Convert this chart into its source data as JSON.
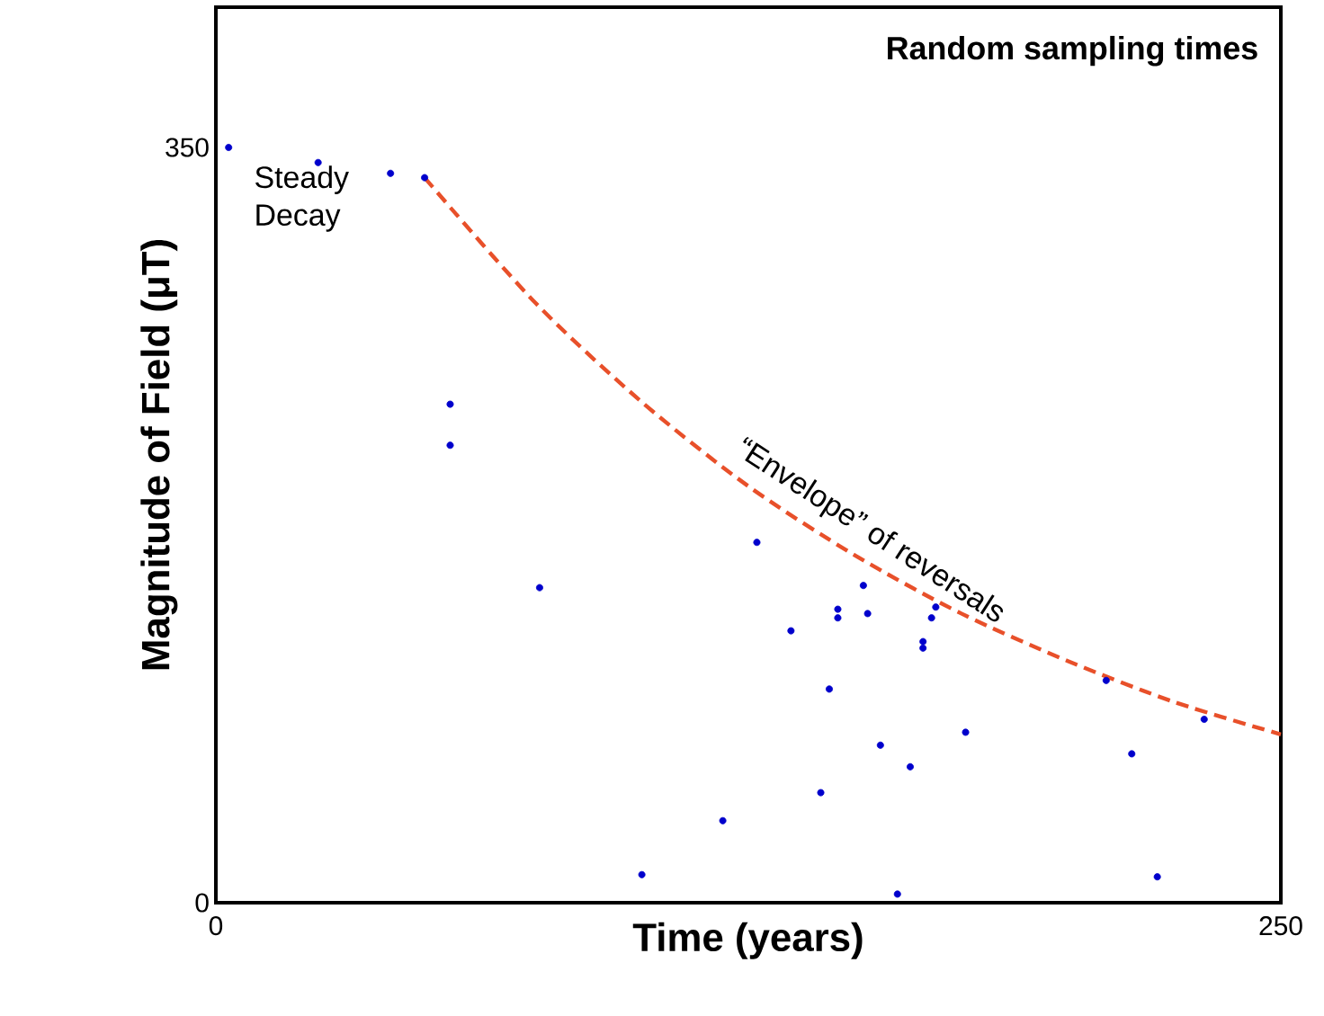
{
  "chart_data": {
    "type": "scatter",
    "title": "Random sampling times",
    "xlabel": "Time (years)",
    "ylabel": "Magnitude of Field (μT)",
    "xlim": [
      0,
      250
    ],
    "ylim": [
      0,
      415
    ],
    "xticks": [
      0,
      250
    ],
    "yticks": [
      0,
      350
    ],
    "series": [
      {
        "color": "#0000cc",
        "marker": "circle",
        "x": [
          3,
          24,
          41,
          49,
          55,
          55,
          127,
          76,
          152,
          146,
          146,
          153,
          135,
          168,
          169,
          166,
          166,
          144,
          176,
          156,
          163,
          215,
          232,
          209,
          142,
          119,
          100,
          221,
          160
        ],
        "values": [
          350,
          343,
          338,
          336,
          231,
          212,
          167,
          146,
          147,
          136,
          132,
          134,
          126,
          132,
          137,
          121,
          118,
          99,
          79,
          73,
          63,
          69,
          85,
          103,
          51,
          38,
          13,
          12,
          4
        ]
      },
      {
        "type": "line",
        "color": "#e8502a",
        "line_style": "dashed",
        "marker": "none",
        "x": [
          49,
          75,
          100,
          125,
          150,
          175,
          200,
          225,
          250
        ],
        "values": [
          336,
          278,
          232,
          193,
          161,
          134,
          112,
          93,
          78
        ]
      }
    ],
    "annotations": [
      "Steady Decay",
      {
        "text": "“Envelope” of reversals",
        "x": 150,
        "y": 161
      }
    ]
  }
}
